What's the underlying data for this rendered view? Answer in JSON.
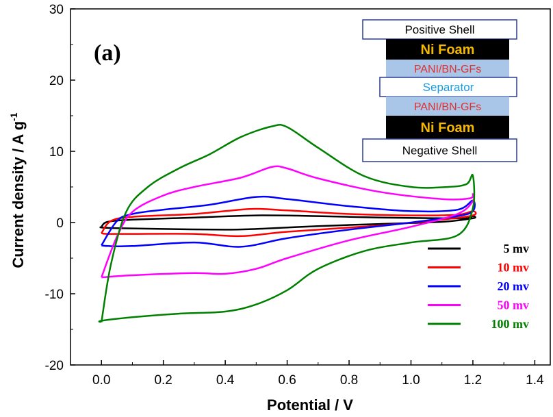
{
  "panel_label": "(a)",
  "inset": {
    "layers": [
      {
        "label": "Positive Shell",
        "style": "shell",
        "text_color": "#000000"
      },
      {
        "label": "Ni Foam",
        "style": "foam",
        "text_color": "#f5b800"
      },
      {
        "label": "PANI/BN-GFs",
        "style": "active",
        "text_color": "#e03030"
      },
      {
        "label": "Separator",
        "style": "separator",
        "text_color": "#1a9be0"
      },
      {
        "label": "PANI/BN-GFs",
        "style": "active",
        "text_color": "#e03030"
      },
      {
        "label": "Ni Foam",
        "style": "foam",
        "text_color": "#f5b800"
      },
      {
        "label": "Negative Shell",
        "style": "shell",
        "text_color": "#000000"
      }
    ],
    "colors": {
      "shell_border": "#2a3f8f",
      "foam_fill": "#000000",
      "active_fill": "#a9c6e8"
    }
  },
  "chart_data": {
    "type": "line",
    "xlabel": "Potential / V",
    "ylabel": "Current density / A g",
    "ylabel_superscript": "-1",
    "xlim": [
      -0.1,
      1.45
    ],
    "ylim": [
      -20,
      30
    ],
    "xticks": [
      0.0,
      0.2,
      0.4,
      0.6,
      0.8,
      1.0,
      1.2,
      1.4
    ],
    "xtick_labels": [
      "0.0",
      "0.2",
      "0.4",
      "0.6",
      "0.8",
      "1.0",
      "1.2",
      "1.4"
    ],
    "yticks": [
      -20,
      -10,
      0,
      10,
      20,
      30
    ],
    "ytick_labels": [
      "-20",
      "-10",
      "0",
      "10",
      "20",
      "30"
    ],
    "legend_position": "bottom-right",
    "series": [
      {
        "name": "5 mv",
        "color": "#000000",
        "x": [
          0.0,
          0.02,
          0.1,
          0.3,
          0.5,
          0.7,
          0.9,
          1.1,
          1.18,
          1.2,
          1.2,
          1.1,
          0.9,
          0.7,
          0.5,
          0.4,
          0.2,
          0.05,
          0.0,
          0.0
        ],
        "y": [
          -0.6,
          0.1,
          0.4,
          0.7,
          1.0,
          0.9,
          0.7,
          0.6,
          0.6,
          0.9,
          0.6,
          0.1,
          -0.2,
          -0.5,
          -0.9,
          -1.0,
          -0.9,
          -0.8,
          -0.7,
          -0.6
        ]
      },
      {
        "name": "10 mv",
        "color": "#ff0000",
        "x": [
          0.0,
          0.03,
          0.1,
          0.3,
          0.48,
          0.6,
          0.8,
          1.0,
          1.15,
          1.2,
          1.2,
          1.1,
          0.9,
          0.6,
          0.45,
          0.3,
          0.1,
          0.02,
          0.0
        ],
        "y": [
          -1.5,
          0.2,
          0.8,
          1.2,
          1.9,
          1.7,
          1.2,
          1.0,
          1.1,
          1.6,
          1.0,
          0.4,
          -0.4,
          -1.3,
          -1.9,
          -1.6,
          -1.6,
          -1.6,
          -1.5
        ]
      },
      {
        "name": "20 mv",
        "color": "#0000ff",
        "x": [
          0.0,
          0.05,
          0.1,
          0.2,
          0.35,
          0.5,
          0.6,
          0.8,
          1.0,
          1.15,
          1.2,
          1.2,
          1.15,
          1.0,
          0.8,
          0.6,
          0.45,
          0.3,
          0.1,
          0.02,
          0.0
        ],
        "y": [
          -3.2,
          0.2,
          1.2,
          1.8,
          2.5,
          3.6,
          3.3,
          2.3,
          1.6,
          1.8,
          3.1,
          1.6,
          0.9,
          0.0,
          -1.0,
          -2.2,
          -3.4,
          -2.8,
          -3.3,
          -3.3,
          -3.2
        ]
      },
      {
        "name": "50 mv",
        "color": "#ff00ff",
        "x": [
          0.0,
          0.05,
          0.1,
          0.2,
          0.3,
          0.45,
          0.55,
          0.6,
          0.7,
          0.9,
          1.1,
          1.19,
          1.2,
          1.2,
          1.15,
          1.0,
          0.8,
          0.6,
          0.5,
          0.4,
          0.3,
          0.1,
          0.0
        ],
        "y": [
          -7.7,
          -2.0,
          1.5,
          3.8,
          5.0,
          6.3,
          7.8,
          7.6,
          6.2,
          4.3,
          3.3,
          3.4,
          4.0,
          3.0,
          1.2,
          -0.6,
          -2.5,
          -5.0,
          -6.5,
          -7.2,
          -7.1,
          -7.4,
          -7.7
        ]
      },
      {
        "name": "100 mv",
        "color": "#008000",
        "x": [
          0.0,
          0.03,
          0.08,
          0.15,
          0.25,
          0.35,
          0.45,
          0.55,
          0.6,
          0.7,
          0.85,
          1.0,
          1.12,
          1.18,
          1.2,
          1.2,
          1.15,
          1.0,
          0.85,
          0.7,
          0.6,
          0.5,
          0.4,
          0.25,
          0.1,
          0.0,
          0.0
        ],
        "y": [
          -14.0,
          -6.0,
          1.5,
          5.0,
          7.6,
          9.6,
          12.0,
          13.5,
          13.4,
          10.5,
          6.5,
          5.0,
          5.0,
          5.4,
          6.6,
          2.0,
          -1.8,
          -2.8,
          -4.0,
          -6.5,
          -9.5,
          -11.5,
          -12.5,
          -12.8,
          -13.3,
          -13.8,
          -14.0
        ]
      }
    ]
  }
}
